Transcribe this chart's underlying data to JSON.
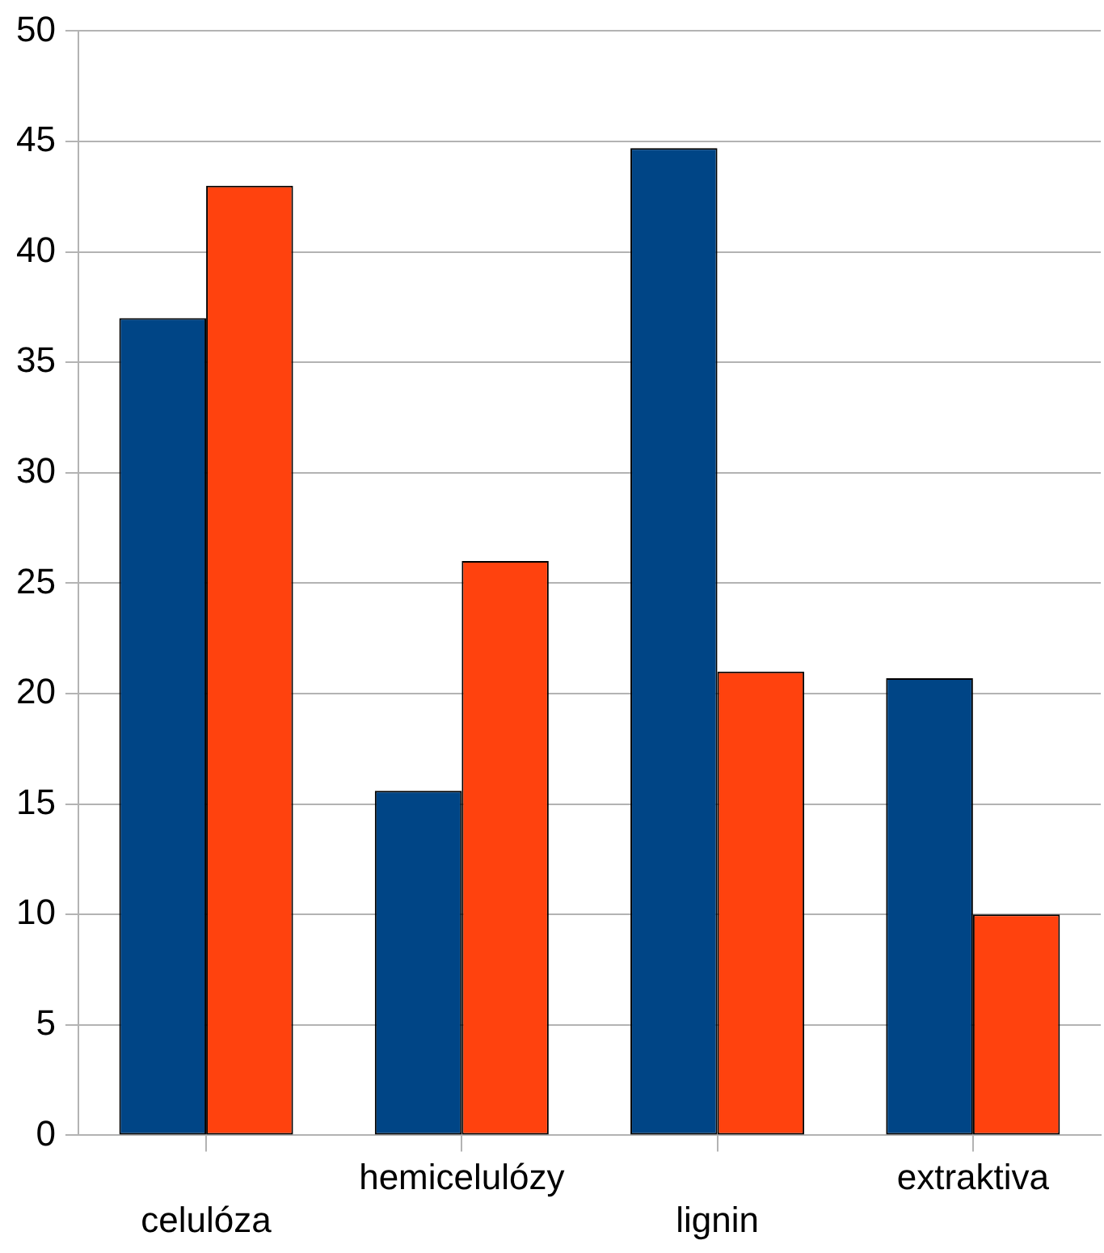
{
  "chart_data": {
    "type": "bar",
    "categories": [
      "celulóza",
      "hemicelulózy",
      "lignin",
      "extraktiva"
    ],
    "series": [
      {
        "color": "#004586",
        "values": [
          37,
          15.6,
          44.7,
          20.7
        ]
      },
      {
        "color": "#ff420e",
        "values": [
          43,
          26,
          21,
          10
        ]
      }
    ],
    "ylim": [
      0,
      50
    ],
    "yticks": [
      0,
      5,
      10,
      15,
      20,
      25,
      30,
      35,
      40,
      45,
      50
    ],
    "grid": "y",
    "legend": false
  }
}
